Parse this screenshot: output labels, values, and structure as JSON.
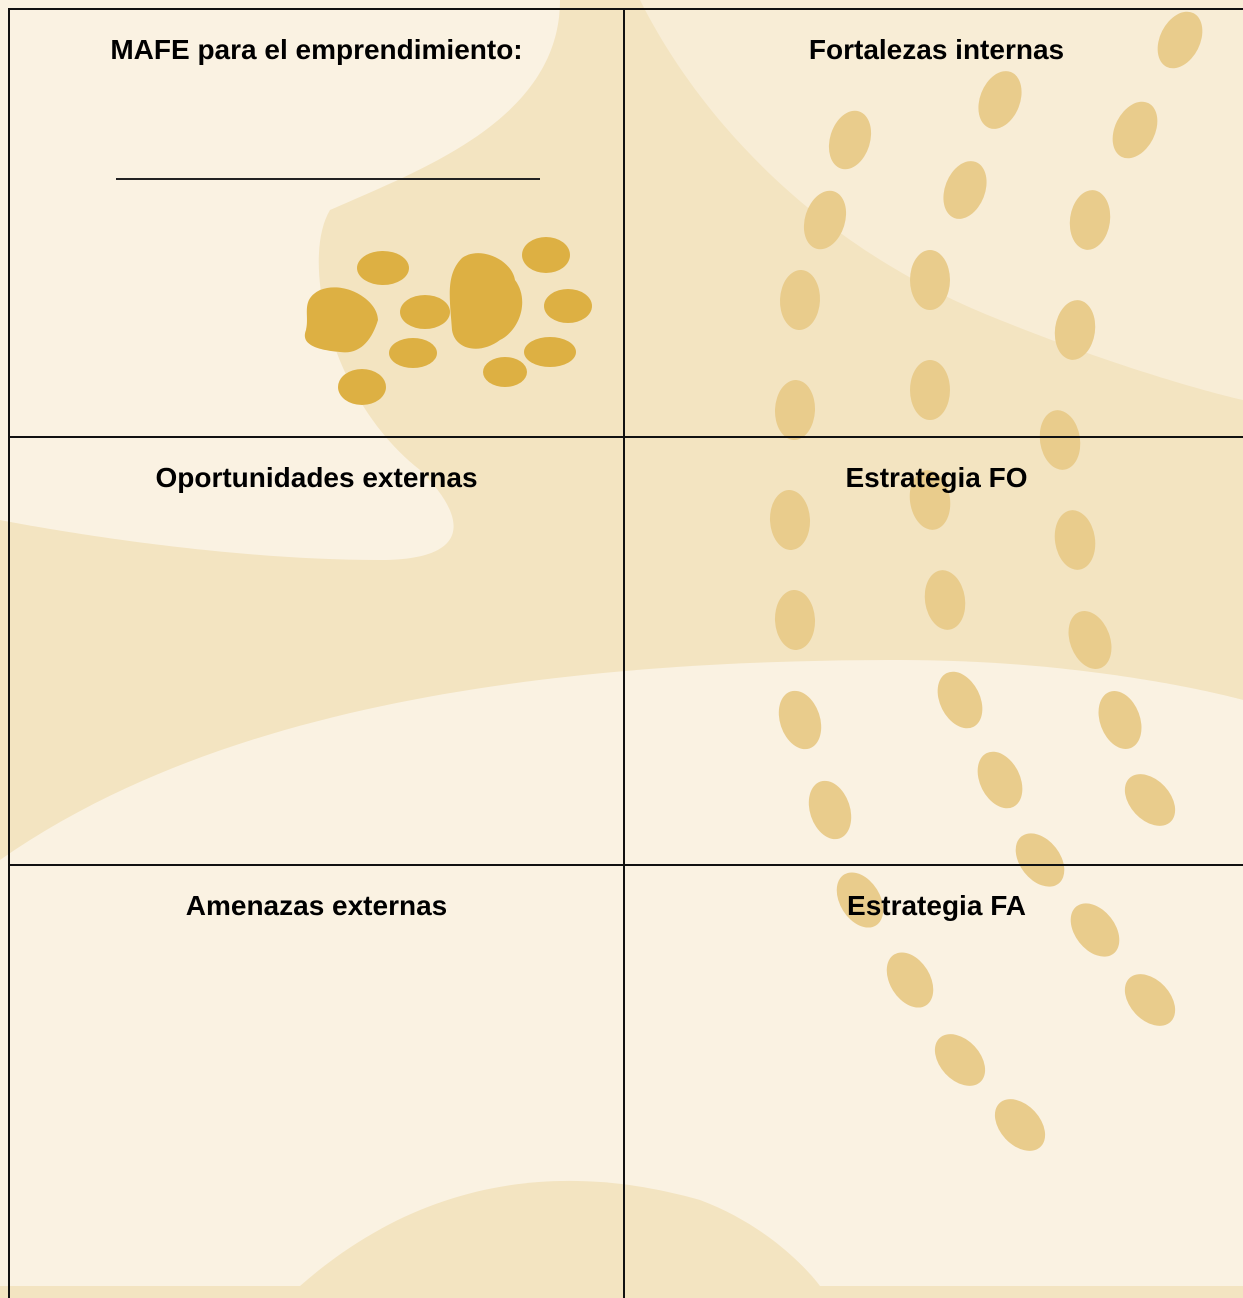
{
  "table": {
    "rows": [
      [
        "MAFE para el emprendimiento:",
        "Fortalezas internas"
      ],
      [
        "Oportunidades externas",
        "Estrategia FO"
      ],
      [
        "Amenazas externas",
        "Estrategia FA"
      ]
    ]
  }
}
